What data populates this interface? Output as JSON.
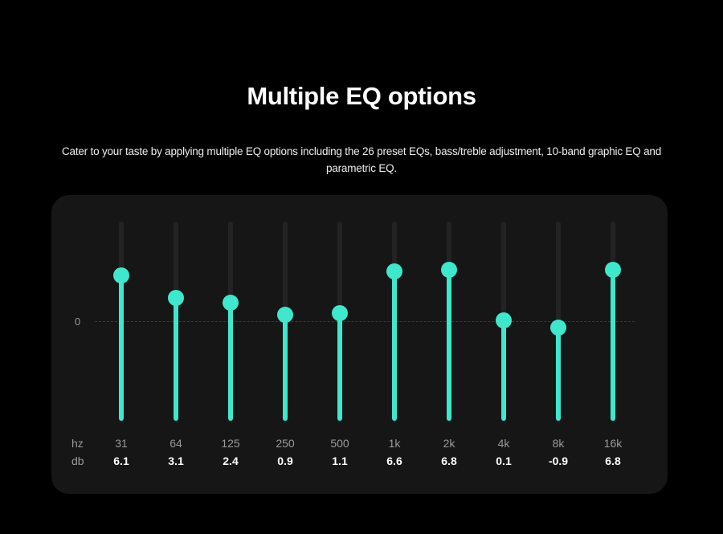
{
  "header": {
    "title": "Multiple EQ options",
    "subtitle": "Cater to your taste by applying multiple EQ options including the 26 preset EQs, bass/treble adjustment, 10-band graphic EQ and parametric EQ."
  },
  "eq": {
    "zero_label": "0",
    "hz_label": "hz",
    "db_label": "db",
    "accent_color": "#3de8cc",
    "bands": [
      {
        "hz": "31",
        "db": "6.1",
        "level": 6.1
      },
      {
        "hz": "64",
        "db": "3.1",
        "level": 3.1
      },
      {
        "hz": "125",
        "db": "2.4",
        "level": 2.4
      },
      {
        "hz": "250",
        "db": "0.9",
        "level": 0.9
      },
      {
        "hz": "500",
        "db": "1.1",
        "level": 1.1
      },
      {
        "hz": "1k",
        "db": "6.6",
        "level": 6.6
      },
      {
        "hz": "2k",
        "db": "6.8",
        "level": 6.8
      },
      {
        "hz": "4k",
        "db": "0.1",
        "level": 0.1
      },
      {
        "hz": "8k",
        "db": "-0.9",
        "level": -0.9
      },
      {
        "hz": "16k",
        "db": "6.8",
        "level": 6.8
      }
    ]
  }
}
